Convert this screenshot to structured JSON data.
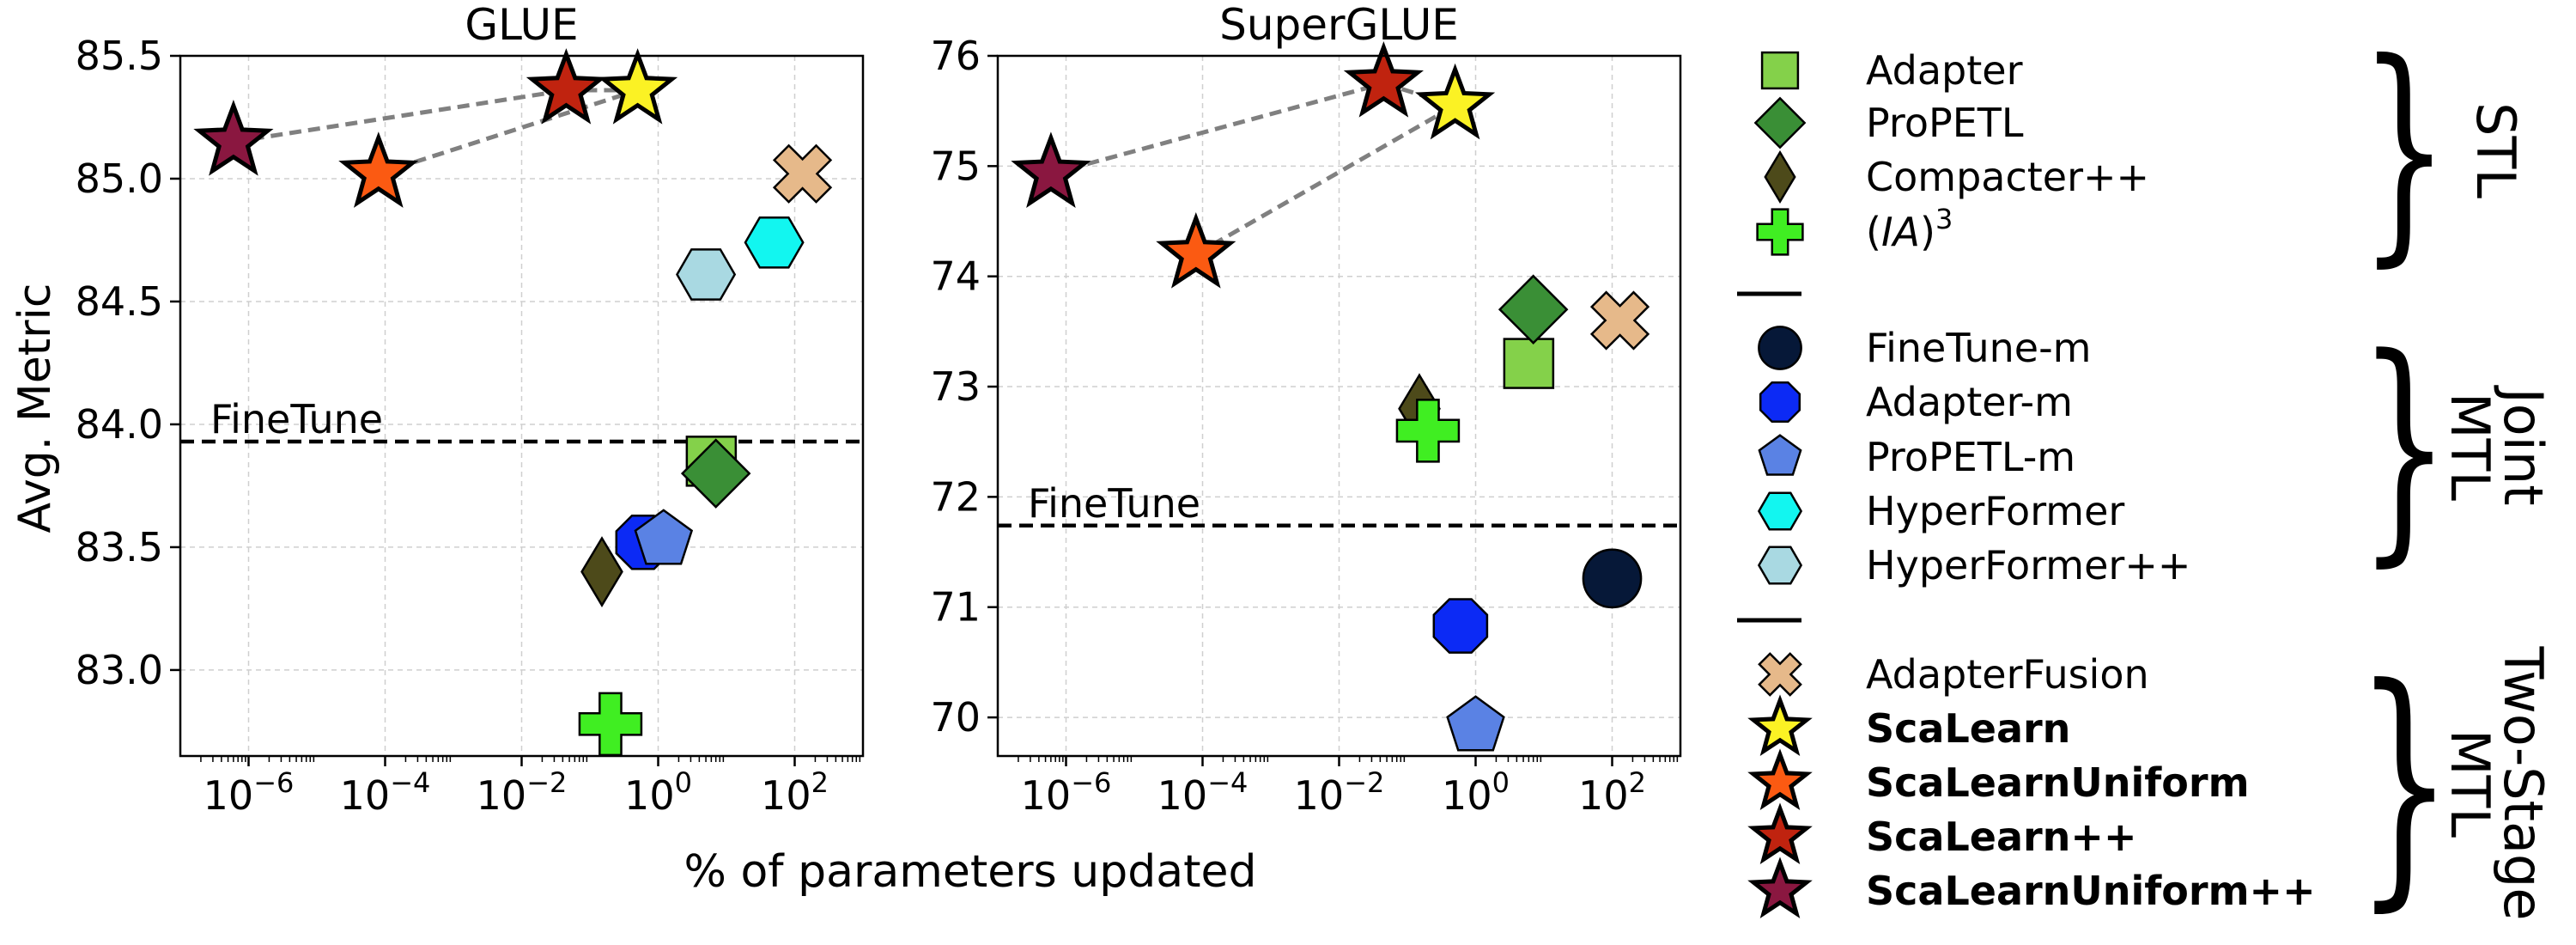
{
  "figure": {
    "xlabel": "% of parameters updated",
    "ylabel": "Avg. Metric"
  },
  "chart_data": [
    {
      "type": "scatter",
      "title": "GLUE",
      "xscale": "log",
      "xlim": [
        1e-07,
        1000
      ],
      "ylim": [
        82.65,
        85.5
      ],
      "xticks": [
        {
          "value": 1e-06,
          "base": "10",
          "exp": "−6"
        },
        {
          "value": 0.0001,
          "base": "10",
          "exp": "−4"
        },
        {
          "value": 0.01,
          "base": "10",
          "exp": "−2"
        },
        {
          "value": 1,
          "base": "10",
          "exp": "0"
        },
        {
          "value": 100,
          "base": "10",
          "exp": "2"
        }
      ],
      "yticks": [
        "83.0",
        "83.5",
        "84.0",
        "84.5",
        "85.0",
        "85.5"
      ],
      "grid": true,
      "reference_line": {
        "label": "FineTune",
        "y": 83.93
      },
      "points": [
        {
          "method": "Adapter",
          "x": 6.0,
          "y": 83.85
        },
        {
          "method": "ProPETL",
          "x": 7.0,
          "y": 83.8
        },
        {
          "method": "Compacter++",
          "x": 0.15,
          "y": 83.4
        },
        {
          "method": "(IA)3",
          "x": 0.2,
          "y": 82.78
        },
        {
          "method": "Adapter-m",
          "x": 0.6,
          "y": 83.52
        },
        {
          "method": "ProPETL-m",
          "x": 1.2,
          "y": 83.53
        },
        {
          "method": "HyperFormer",
          "x": 50,
          "y": 84.74
        },
        {
          "method": "HyperFormer++",
          "x": 5,
          "y": 84.61
        },
        {
          "method": "AdapterFusion",
          "x": 130,
          "y": 85.02
        },
        {
          "method": "ScaLearn",
          "x": 0.5,
          "y": 85.36
        },
        {
          "method": "ScaLearnUniform",
          "x": 8e-05,
          "y": 85.02
        },
        {
          "method": "ScaLearn++",
          "x": 0.045,
          "y": 85.36
        },
        {
          "method": "ScaLearnUniform++",
          "x": 6e-07,
          "y": 85.15
        }
      ],
      "connectors": [
        [
          "ScaLearnUniform++",
          "ScaLearn++"
        ],
        [
          "ScaLearn++",
          "ScaLearn"
        ],
        [
          "ScaLearnUniform",
          "ScaLearn"
        ]
      ]
    },
    {
      "type": "scatter",
      "title": "SuperGLUE",
      "xscale": "log",
      "xlim": [
        1e-07,
        1000
      ],
      "ylim": [
        69.65,
        76.0
      ],
      "xticks": [
        {
          "value": 1e-06,
          "base": "10",
          "exp": "−6"
        },
        {
          "value": 0.0001,
          "base": "10",
          "exp": "−4"
        },
        {
          "value": 0.01,
          "base": "10",
          "exp": "−2"
        },
        {
          "value": 1,
          "base": "10",
          "exp": "0"
        },
        {
          "value": 100,
          "base": "10",
          "exp": "2"
        }
      ],
      "yticks": [
        "70",
        "71",
        "72",
        "73",
        "74",
        "75",
        "76"
      ],
      "grid": true,
      "reference_line": {
        "label": "FineTune",
        "y": 71.74
      },
      "points": [
        {
          "method": "Adapter",
          "x": 6.0,
          "y": 73.21
        },
        {
          "method": "ProPETL",
          "x": 7.0,
          "y": 73.7
        },
        {
          "method": "Compacter++",
          "x": 0.15,
          "y": 72.8
        },
        {
          "method": "(IA)3",
          "x": 0.2,
          "y": 72.6
        },
        {
          "method": "FineTune-m",
          "x": 100,
          "y": 71.26
        },
        {
          "method": "Adapter-m",
          "x": 0.6,
          "y": 70.83
        },
        {
          "method": "ProPETL-m",
          "x": 1.0,
          "y": 69.92
        },
        {
          "method": "AdapterFusion",
          "x": 130,
          "y": 73.6
        },
        {
          "method": "ScaLearn",
          "x": 0.5,
          "y": 75.55
        },
        {
          "method": "ScaLearnUniform",
          "x": 8e-05,
          "y": 74.2
        },
        {
          "method": "ScaLearn++",
          "x": 0.045,
          "y": 75.75
        },
        {
          "method": "ScaLearnUniform++",
          "x": 6e-07,
          "y": 74.93
        }
      ],
      "connectors": [
        [
          "ScaLearnUniform++",
          "ScaLearn++"
        ],
        [
          "ScaLearn++",
          "ScaLearn"
        ],
        [
          "ScaLearnUniform",
          "ScaLearn"
        ]
      ]
    }
  ],
  "legend": {
    "placement": "right",
    "groups": [
      {
        "name": "STL",
        "items": [
          {
            "label": "Adapter",
            "marker": "square-icon",
            "color": "#84d14a",
            "bold": false
          },
          {
            "label": "ProPETL",
            "marker": "diamond-icon",
            "color": "#3a8f36",
            "bold": false
          },
          {
            "label": "Compacter++",
            "marker": "thin-diamond-icon",
            "color": "#4d4a1a",
            "bold": false
          },
          {
            "label": "(IA)3",
            "marker": "plus-icon",
            "color": "#40ee22",
            "bold": false
          }
        ]
      },
      {
        "name": "Joint MTL",
        "items": [
          {
            "label": "FineTune-m",
            "marker": "circle-icon",
            "color": "#061838",
            "bold": false
          },
          {
            "label": "Adapter-m",
            "marker": "octagon-icon",
            "color": "#0c2af5",
            "bold": false
          },
          {
            "label": "ProPETL-m",
            "marker": "pentagon-icon",
            "color": "#5a82e4",
            "bold": false
          },
          {
            "label": "HyperFormer",
            "marker": "hexagon-icon",
            "color": "#12f6f0",
            "bold": false
          },
          {
            "label": "HyperFormer++",
            "marker": "hexagon-icon",
            "color": "#a9d9e2",
            "bold": false
          }
        ]
      },
      {
        "name": "Two-Stage MTL",
        "items": [
          {
            "label": "AdapterFusion",
            "marker": "x-icon",
            "color": "#e6b98a",
            "bold": false
          },
          {
            "label": "ScaLearn",
            "marker": "star-icon",
            "color": "#fbf224",
            "bold": true
          },
          {
            "label": "ScaLearnUniform",
            "marker": "star-icon",
            "color": "#fb5a12",
            "bold": true
          },
          {
            "label": "ScaLearn++",
            "marker": "star-icon",
            "color": "#c0230f",
            "bold": true
          },
          {
            "label": "ScaLearnUniform++",
            "marker": "star-icon",
            "color": "#8a1740",
            "bold": true
          }
        ]
      }
    ]
  }
}
